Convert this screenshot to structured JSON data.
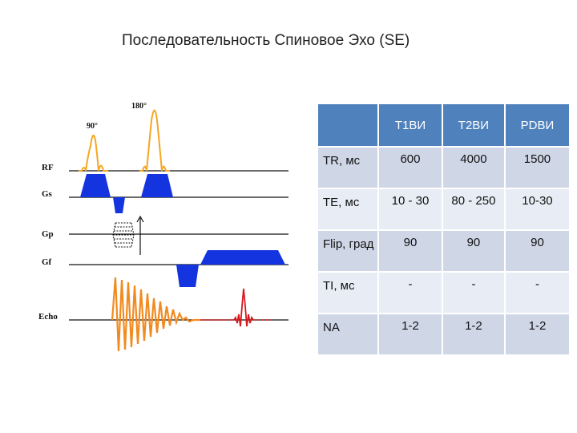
{
  "title": "Последовательность Спиновое Эхо (SE)",
  "diagram": {
    "row_labels": [
      "RF",
      "Gs",
      "Gp",
      "Gf",
      "Echo"
    ],
    "pulse_labels": [
      "90°",
      "180°"
    ],
    "colors": {
      "rf": "#f5a623",
      "gradient": "#1434e0",
      "echo": "#f28a1f",
      "echo_peak": "#d9191f",
      "line": "#111111"
    }
  },
  "table": {
    "headers": [
      "",
      "T1ВИ",
      "T2ВИ",
      "PDВИ"
    ],
    "rows": [
      {
        "label": "TR, мс",
        "values": [
          "600",
          "4000",
          "1500"
        ]
      },
      {
        "label": "TE, мс",
        "values": [
          "10 - 30",
          "80 - 250",
          "10-30"
        ]
      },
      {
        "label": "Flip, град",
        "values": [
          "90",
          "90",
          "90"
        ]
      },
      {
        "label": "TI, мс",
        "values": [
          "-",
          "-",
          "-"
        ]
      },
      {
        "label": "NA",
        "values": [
          "1-2",
          "1-2",
          "1-2"
        ]
      }
    ]
  }
}
